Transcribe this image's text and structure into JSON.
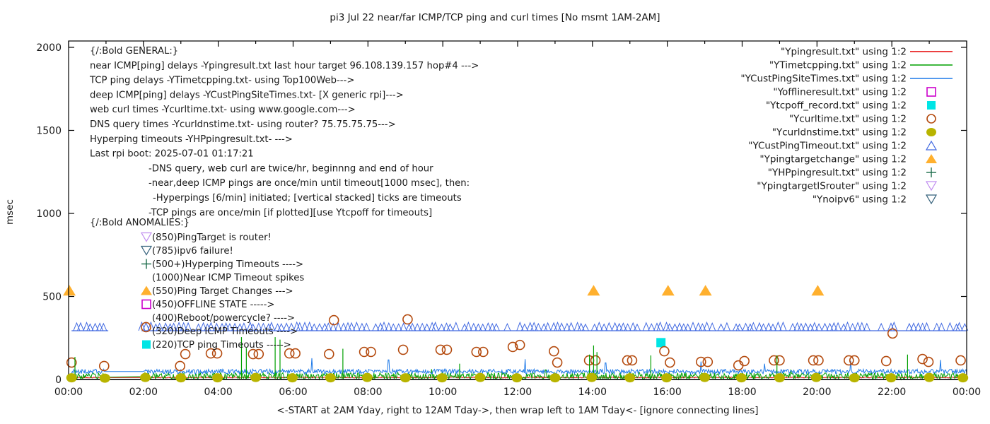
{
  "title": "pi3 Jul 22  near/far ICMP/TCP ping and curl times [No msmt 1AM-2AM]",
  "axes": {
    "ylabel": "msec",
    "xlabel": "<-START at 2AM Yday, right to 12AM Tday->, then wrap left to 1AM Tday<- [ignore connecting lines]",
    "y_range": [
      0,
      2000
    ],
    "y_ticks": [
      0,
      500,
      1000,
      1500,
      2000
    ],
    "x_range_hours": [
      0,
      24
    ],
    "x_ticks": [
      {
        "hour": 0,
        "label": "00:00"
      },
      {
        "hour": 2,
        "label": "02:00"
      },
      {
        "hour": 4,
        "label": "04:00"
      },
      {
        "hour": 6,
        "label": "06:00"
      },
      {
        "hour": 8,
        "label": "08:00"
      },
      {
        "hour": 10,
        "label": "10:00"
      },
      {
        "hour": 12,
        "label": "12:00"
      },
      {
        "hour": 14,
        "label": "14:00"
      },
      {
        "hour": 16,
        "label": "16:00"
      },
      {
        "hour": 18,
        "label": "18:00"
      },
      {
        "hour": 20,
        "label": "20:00"
      },
      {
        "hour": 22,
        "label": "22:00"
      },
      {
        "hour": 24,
        "label": "00:00"
      }
    ],
    "grid": false
  },
  "legend": {
    "position": "top-right",
    "items": [
      {
        "label": "\"Ypingresult.txt\" using 1:2",
        "marker": "line",
        "color": "#e60000"
      },
      {
        "label": "\"YTimetcpping.txt\" using 1:2",
        "marker": "line",
        "color": "#00a000"
      },
      {
        "label": "\"YCustPingSiteTimes.txt\" using 1:2",
        "marker": "line",
        "color": "#1c78e8"
      },
      {
        "label": "\"Yofflineresult.txt\" using 1:2",
        "marker": "open-square",
        "color": "#cc00cc"
      },
      {
        "label": "\"Ytcpoff_record.txt\" using 1:2",
        "marker": "filled-square",
        "color": "#00e5e5"
      },
      {
        "label": "\"Ycurltime.txt\" using 1:2",
        "marker": "open-circle",
        "color": "#b44a0e"
      },
      {
        "label": "\"Ycurldnstime.txt\" using 1:2",
        "marker": "filled-circle",
        "color": "#b8b400"
      },
      {
        "label": "\"YCustPingTimeout.txt\" using 1:2",
        "marker": "open-triangle-up",
        "color": "#4169e1"
      },
      {
        "label": "\"Ypingtargetchange\" using 1:2",
        "marker": "filled-triangle-up",
        "color": "#ffb02e"
      },
      {
        "label": "\"YHPpingresult.txt\" using 1:2",
        "marker": "plus",
        "color": "#1a6b4a"
      },
      {
        "label": "\"YpingtargetISrouter\" using 1:2",
        "marker": "open-triangle-down",
        "color": "#c08df0"
      },
      {
        "label": "\"Ynoipv6\" using 1:2",
        "marker": "open-triangle-down",
        "color": "#33607a"
      }
    ]
  },
  "annotations": {
    "general": {
      "lines": [
        {
          "text": "{/:Bold GENERAL:}",
          "indent": 0
        },
        {
          "text": "near ICMP[ping] delays -Ypingresult.txt last hour target 96.108.139.157 hop#4 --->",
          "indent": 0
        },
        {
          "text": "TCP ping delays -YTimetcpping.txt- using Top100Web--->",
          "indent": 0
        },
        {
          "text": "deep ICMP[ping] delays -YCustPingSiteTimes.txt- [X generic rpi]--->",
          "indent": 0
        },
        {
          "text": "web curl times -Ycurltime.txt- using www.google.com--->",
          "indent": 0
        },
        {
          "text": "DNS query times -Ycurldnstime.txt- using router? 75.75.75.75--->",
          "indent": 0
        },
        {
          "text": "Hyperping timeouts -YHPpingresult.txt- --->",
          "indent": 0
        },
        {
          "text": "Last rpi boot: 2025-07-01 01:17:21",
          "indent": 0
        },
        {
          "text": "-DNS query, web curl are twice/hr, beginnng and end of hour",
          "indent": 1
        },
        {
          "text": "-near,deep ICMP pings are once/min until timeout[1000 msec], then:",
          "indent": 1
        },
        {
          "text": "-Hyperpings [6/min] initiated; [vertical stacked] ticks are timeouts",
          "indent": 1.1
        },
        {
          "text": "-TCP pings are once/min [if plotted][use Ytcpoff for timeouts]",
          "indent": 1
        }
      ]
    },
    "anomalies": {
      "heading": "{/:Bold ANOMALIES:}",
      "lines": [
        {
          "marker": "open-triangle-down",
          "color": "#c08df0",
          "text": "(850)PingTarget is router!"
        },
        {
          "marker": "open-triangle-down",
          "color": "#33607a",
          "text": "(785)ipv6 failure!"
        },
        {
          "marker": "plus",
          "color": "#1a6b4a",
          "text": "(500+)Hyperping Timeouts ---->"
        },
        {
          "marker": "none",
          "color": "",
          "text": "(1000)Near ICMP Timeout spikes"
        },
        {
          "marker": "filled-triangle-up",
          "color": "#ffb02e",
          "text": "(550)Ping Target Changes --->"
        },
        {
          "marker": "open-square",
          "color": "#cc00cc",
          "text": "(450)OFFLINE STATE ----->"
        },
        {
          "marker": "none",
          "color": "",
          "text": "(400)Reboot/powercycle? ---->"
        },
        {
          "marker": "none",
          "color": "",
          "text": "(320)Deep ICMP Timeouts ---->"
        },
        {
          "marker": "filled-square",
          "color": "#00e5e5",
          "text": "(220)TCP ping Timeouts ----->"
        }
      ]
    }
  },
  "chart_data": {
    "type": "line",
    "title": "pi3 Jul 22  near/far ICMP/TCP ping and curl times [No msmt 1AM-2AM]",
    "xlabel": "<-START at 2AM Yday, right to 12AM Tday->, then wrap left to 1AM Tday<- [ignore connecting lines]",
    "ylabel": "msec",
    "ylim": [
      0,
      2000
    ],
    "xlim_hours": [
      0,
      24
    ],
    "gap_no_measurement_hours": [
      1.0,
      2.0
    ],
    "series": [
      {
        "name": "Ypingresult.txt",
        "kind": "noisy-line",
        "color": "#e60000",
        "baseline": 12,
        "amp": 3,
        "segments": [
          [
            0.05,
            24
          ]
        ],
        "flat_window": [
          0.95,
          2.02
        ],
        "spikes": []
      },
      {
        "name": "YTimetcpping.txt",
        "kind": "noisy-line",
        "color": "#00a000",
        "baseline": 21,
        "amp": 20,
        "segments": [
          [
            0.08,
            0.95
          ],
          [
            2.02,
            24
          ]
        ],
        "flat_window": null,
        "connector": [
          [
            0.95,
            5
          ],
          [
            2.02,
            48
          ]
        ],
        "spikes": [
          [
            9.7,
            62
          ],
          [
            12.75,
            58
          ],
          [
            19.3,
            60
          ]
        ]
      },
      {
        "name": "YCustPingSiteTimes.txt",
        "kind": "noisy-line",
        "color": "#1c78e8",
        "baseline": 48,
        "amp": 14,
        "segments": [
          [
            0.08,
            24
          ]
        ],
        "flat_window": [
          0.95,
          2.02
        ],
        "spikes": [
          [
            6.5,
            128
          ],
          [
            8.55,
            118
          ],
          [
            12.2,
            122
          ],
          [
            14.35,
            100
          ],
          [
            16.9,
            108
          ],
          [
            18.6,
            95
          ],
          [
            20.9,
            112
          ],
          [
            23.3,
            118
          ]
        ]
      },
      {
        "name": "YCustPingTimeout.txt",
        "kind": "triangle-band",
        "color": "#4169e1",
        "value": 315,
        "segments": [
          [
            0.08,
            1.06
          ],
          [
            1.95,
            24
          ]
        ]
      },
      {
        "name": "Yofflineresult.txt",
        "kind": "open-square",
        "color": "#cc00cc",
        "points": []
      },
      {
        "name": "Ytcpoff_record.txt",
        "kind": "filled-square",
        "color": "#00e5e5",
        "points": [
          [
            15.83,
            222
          ]
        ]
      },
      {
        "name": "Ycurltime.txt",
        "kind": "open-circle",
        "color": "#b44a0e",
        "points": [
          [
            0.08,
            102
          ],
          [
            0.95,
            81
          ],
          [
            2.07,
            315
          ],
          [
            2.98,
            81
          ],
          [
            3.12,
            153
          ],
          [
            3.8,
            157
          ],
          [
            3.97,
            157
          ],
          [
            4.93,
            153
          ],
          [
            5.08,
            153
          ],
          [
            5.9,
            157
          ],
          [
            6.06,
            157
          ],
          [
            6.96,
            153
          ],
          [
            7.09,
            357
          ],
          [
            7.9,
            166
          ],
          [
            8.08,
            166
          ],
          [
            8.94,
            179
          ],
          [
            9.06,
            362
          ],
          [
            9.94,
            179
          ],
          [
            10.11,
            179
          ],
          [
            10.9,
            166
          ],
          [
            11.08,
            166
          ],
          [
            11.87,
            196
          ],
          [
            12.06,
            208
          ],
          [
            12.97,
            170
          ],
          [
            13.06,
            102
          ],
          [
            13.91,
            115
          ],
          [
            14.08,
            115
          ],
          [
            14.93,
            115
          ],
          [
            15.06,
            115
          ],
          [
            15.92,
            170
          ],
          [
            16.07,
            102
          ],
          [
            16.9,
            106
          ],
          [
            17.08,
            106
          ],
          [
            17.9,
            85
          ],
          [
            18.06,
            111
          ],
          [
            18.85,
            115
          ],
          [
            19.0,
            115
          ],
          [
            19.9,
            115
          ],
          [
            20.04,
            115
          ],
          [
            20.85,
            115
          ],
          [
            21.0,
            115
          ],
          [
            21.85,
            111
          ],
          [
            22.02,
            277
          ],
          [
            22.82,
            123
          ],
          [
            22.98,
            106
          ],
          [
            23.84,
            115
          ]
        ]
      },
      {
        "name": "Ycurldnstime.txt",
        "kind": "filled-circle",
        "color": "#b8b400",
        "points": [
          [
            0.08,
            10
          ],
          [
            0.97,
            8
          ],
          [
            2.05,
            12
          ],
          [
            3.0,
            10
          ],
          [
            3.98,
            10
          ],
          [
            5.0,
            12
          ],
          [
            5.98,
            10
          ],
          [
            7.0,
            10
          ],
          [
            7.98,
            12
          ],
          [
            9.0,
            10
          ],
          [
            9.98,
            10
          ],
          [
            11.0,
            12
          ],
          [
            11.98,
            10
          ],
          [
            13.0,
            10
          ],
          [
            13.98,
            12
          ],
          [
            15.0,
            10
          ],
          [
            15.98,
            10
          ],
          [
            17.0,
            12
          ],
          [
            17.98,
            10
          ],
          [
            19.0,
            10
          ],
          [
            19.98,
            12
          ],
          [
            21.0,
            10
          ],
          [
            21.98,
            10
          ],
          [
            23.0,
            12
          ],
          [
            23.9,
            10
          ]
        ]
      },
      {
        "name": "Ypingtargetchange",
        "kind": "filled-triangle-up",
        "color": "#ffb02e",
        "points": [
          [
            0.02,
            535
          ],
          [
            14.03,
            535
          ],
          [
            16.02,
            535
          ],
          [
            17.02,
            535
          ],
          [
            20.02,
            535
          ]
        ]
      },
      {
        "name": "YHPpingresult.txt",
        "kind": "vertical-spikes",
        "color": "#00a000",
        "points": [
          [
            0.17,
            136
          ],
          [
            4.62,
            255
          ],
          [
            4.75,
            190
          ],
          [
            5.52,
            255
          ],
          [
            5.65,
            240
          ],
          [
            7.33,
            185
          ],
          [
            10.45,
            95
          ],
          [
            13.92,
            150
          ],
          [
            14.03,
            205
          ],
          [
            14.12,
            165
          ],
          [
            15.56,
            145
          ],
          [
            18.93,
            145
          ],
          [
            22.42,
            150
          ]
        ]
      },
      {
        "name": "YpingtargetISrouter",
        "kind": "open-triangle-down",
        "color": "#c08df0",
        "points": []
      },
      {
        "name": "Ynoipv6",
        "kind": "open-triangle-down",
        "color": "#33607a",
        "points": []
      }
    ]
  }
}
